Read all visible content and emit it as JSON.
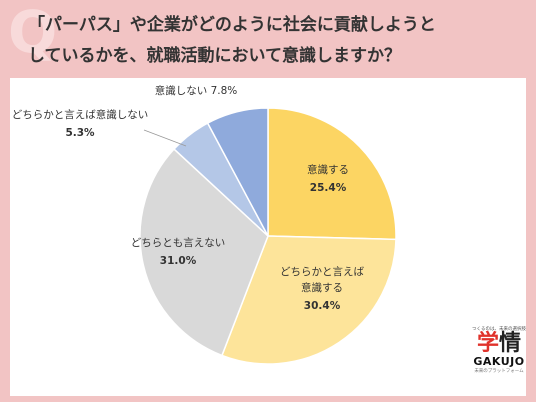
{
  "title": {
    "line1": "「パーパス」や企業がどのように社会に貢献しようと",
    "line2": "しているかを、就職活動において意識しますか？"
  },
  "logo": {
    "tagline": "つくるのは、未来の選択肢",
    "mark_left": "学",
    "mark_right": "情",
    "name": "GAKUJO",
    "sub": "未来のプラットフォーム"
  },
  "chart_data": {
    "type": "pie",
    "start": "12 o'clock, clockwise",
    "slices": [
      {
        "label": "意識する",
        "value": 25.4,
        "display": "25.4%",
        "color": "#fcd563"
      },
      {
        "label": "どちらかと言えば意識する",
        "label_lines": [
          "どちらかと言えば",
          "意識する"
        ],
        "value": 30.4,
        "display": "30.4%",
        "color": "#fde49a"
      },
      {
        "label": "どちらとも言えない",
        "value": 31.0,
        "display": "31.0%",
        "color": "#d9d9d9"
      },
      {
        "label": "どちらかと言えば意識しない",
        "value": 5.3,
        "display": "5.3%",
        "color": "#b4c7e7"
      },
      {
        "label": "意識しない",
        "value": 7.8,
        "display": "7.8%",
        "color": "#8faadc"
      }
    ]
  }
}
